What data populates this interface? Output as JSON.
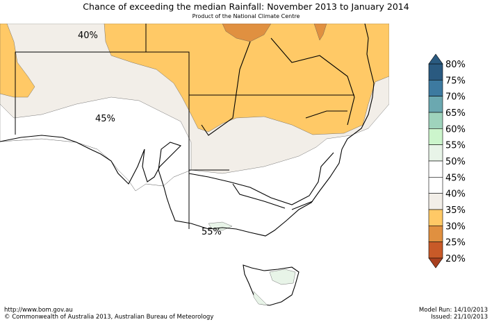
{
  "title": "Chance of exceeding the median Rainfall: November 2013 to January 2014",
  "subtitle": "Product of the National Climate Centre",
  "map_labels": [
    "40%",
    "45%",
    "55%"
  ],
  "legend": [
    {
      "label": "80%",
      "color": "#2a5a80"
    },
    {
      "label": "75%",
      "color": "#3d7aa0"
    },
    {
      "label": "70%",
      "color": "#6ba8b0"
    },
    {
      "label": "65%",
      "color": "#9fd3bc"
    },
    {
      "label": "60%",
      "color": "#ccf5cc"
    },
    {
      "label": "55%",
      "color": "#e8f4e8"
    },
    {
      "label": "50%",
      "color": "#ffffff"
    },
    {
      "label": "45%",
      "color": "#ffffff"
    },
    {
      "label": "40%",
      "color": "#f2eee8"
    },
    {
      "label": "35%",
      "color": "#ffc966"
    },
    {
      "label": "30%",
      "color": "#e09040"
    },
    {
      "label": "25%",
      "color": "#c85a28"
    },
    {
      "label": "20%",
      "color": "#a84020"
    }
  ],
  "footer": {
    "url": "http://www.bom.gov.au",
    "copyright": "©  Commonwealth of Australia 2013, Australian Bureau of Meteorology",
    "model_run": "Model Run: 14/10/2013",
    "issued": "Issued: 21/10/2013"
  }
}
